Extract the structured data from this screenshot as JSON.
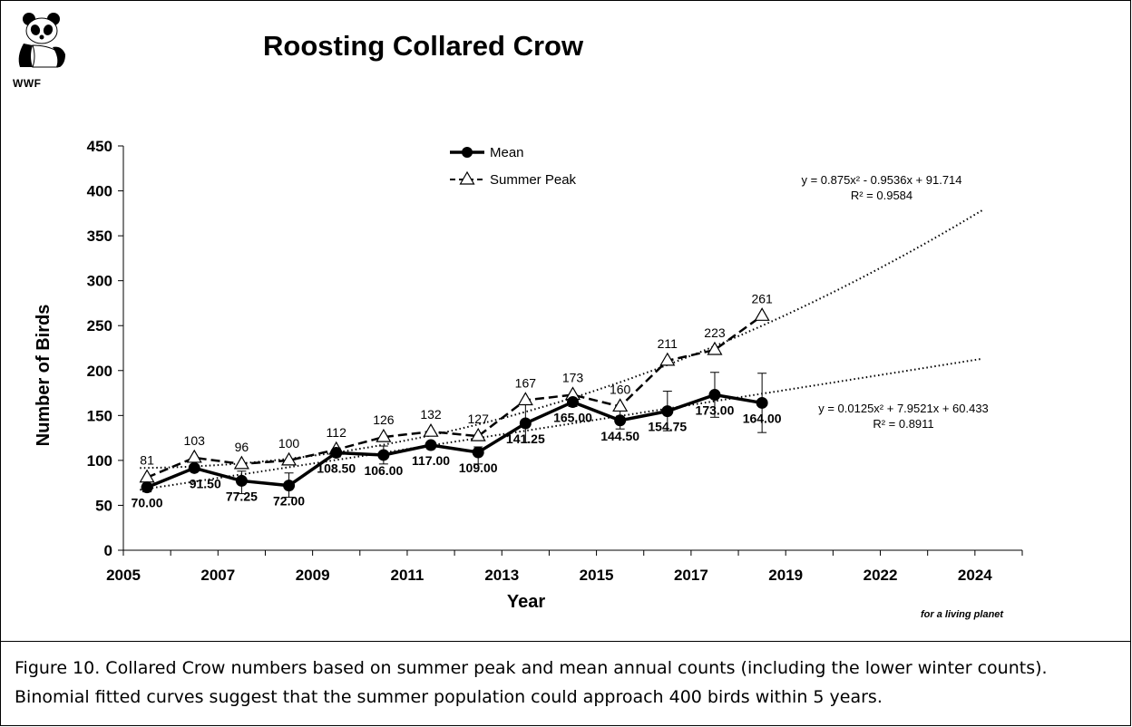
{
  "logo": {
    "text": "WWF"
  },
  "tagline": "for a living planet",
  "caption": "Figure 10. Collared Crow numbers based on summer peak and mean annual counts (including the lower winter counts). Binomial fitted curves suggest that the summer population could approach 400 birds within 5 years.",
  "chart_data": {
    "type": "line",
    "title": "Roosting Collared Crow",
    "xlabel": "Year",
    "ylabel": "Number of Birds",
    "ylim": [
      0,
      450
    ],
    "yticks": [
      0,
      50,
      100,
      150,
      200,
      250,
      300,
      350,
      400,
      450
    ],
    "x_tick_labels": [
      "2005",
      "2007",
      "2009",
      "2011",
      "2013",
      "2015",
      "2017",
      "2019",
      "2022",
      "2024"
    ],
    "n_slots": 19,
    "grid": false,
    "legend_position": "top-center",
    "series": [
      {
        "name": "Mean",
        "style": "solid-circle",
        "slots": [
          1,
          2,
          3,
          4,
          5,
          6,
          7,
          8,
          9,
          10,
          11,
          12,
          13,
          14
        ],
        "values": [
          70.0,
          91.5,
          77.25,
          72.0,
          108.5,
          106.0,
          117.0,
          109.0,
          141.25,
          165.0,
          144.5,
          154.75,
          173.0,
          164.0
        ],
        "labels": [
          "70.00",
          "91.50",
          "77.25",
          "72.00",
          "108.50",
          "106.00",
          "117.00",
          "109.00",
          "141.25",
          "165.00",
          "144.50",
          "154.75",
          "173.00",
          "164.00"
        ],
        "error_upper": [
          74,
          95,
          88,
          86,
          112,
          116,
          118,
          115,
          165,
          168,
          155,
          177,
          198,
          197
        ],
        "error_lower": [
          65,
          88,
          63,
          59,
          104,
          96,
          113,
          96,
          120,
          160,
          135,
          133,
          148,
          131
        ]
      },
      {
        "name": "Summer Peak",
        "style": "dashed-triangle",
        "slots": [
          1,
          2,
          3,
          4,
          5,
          6,
          7,
          8,
          9,
          10,
          11,
          12,
          13,
          14
        ],
        "values": [
          81,
          103,
          96,
          100,
          112,
          126,
          132,
          127,
          167,
          173,
          160,
          211,
          223,
          261
        ],
        "labels": [
          "81",
          "103",
          "96",
          "100",
          "112",
          "126",
          "132",
          "127",
          "167",
          "173",
          "160",
          "211",
          "223",
          "261"
        ]
      }
    ],
    "trendlines": [
      {
        "of": "Summer Peak",
        "type": "polynomial",
        "equation": "y = 0.875x² - 0.9536x + 91.714",
        "r2": "R² = 0.9584",
        "a": 0.875,
        "b": -0.9536,
        "c": 91.714
      },
      {
        "of": "Mean",
        "type": "polynomial",
        "equation": "y = 0.0125x² + 7.9521x + 60.433",
        "r2": "R² = 0.8911",
        "a": 0.0125,
        "b": 7.9521,
        "c": 60.433
      }
    ]
  }
}
